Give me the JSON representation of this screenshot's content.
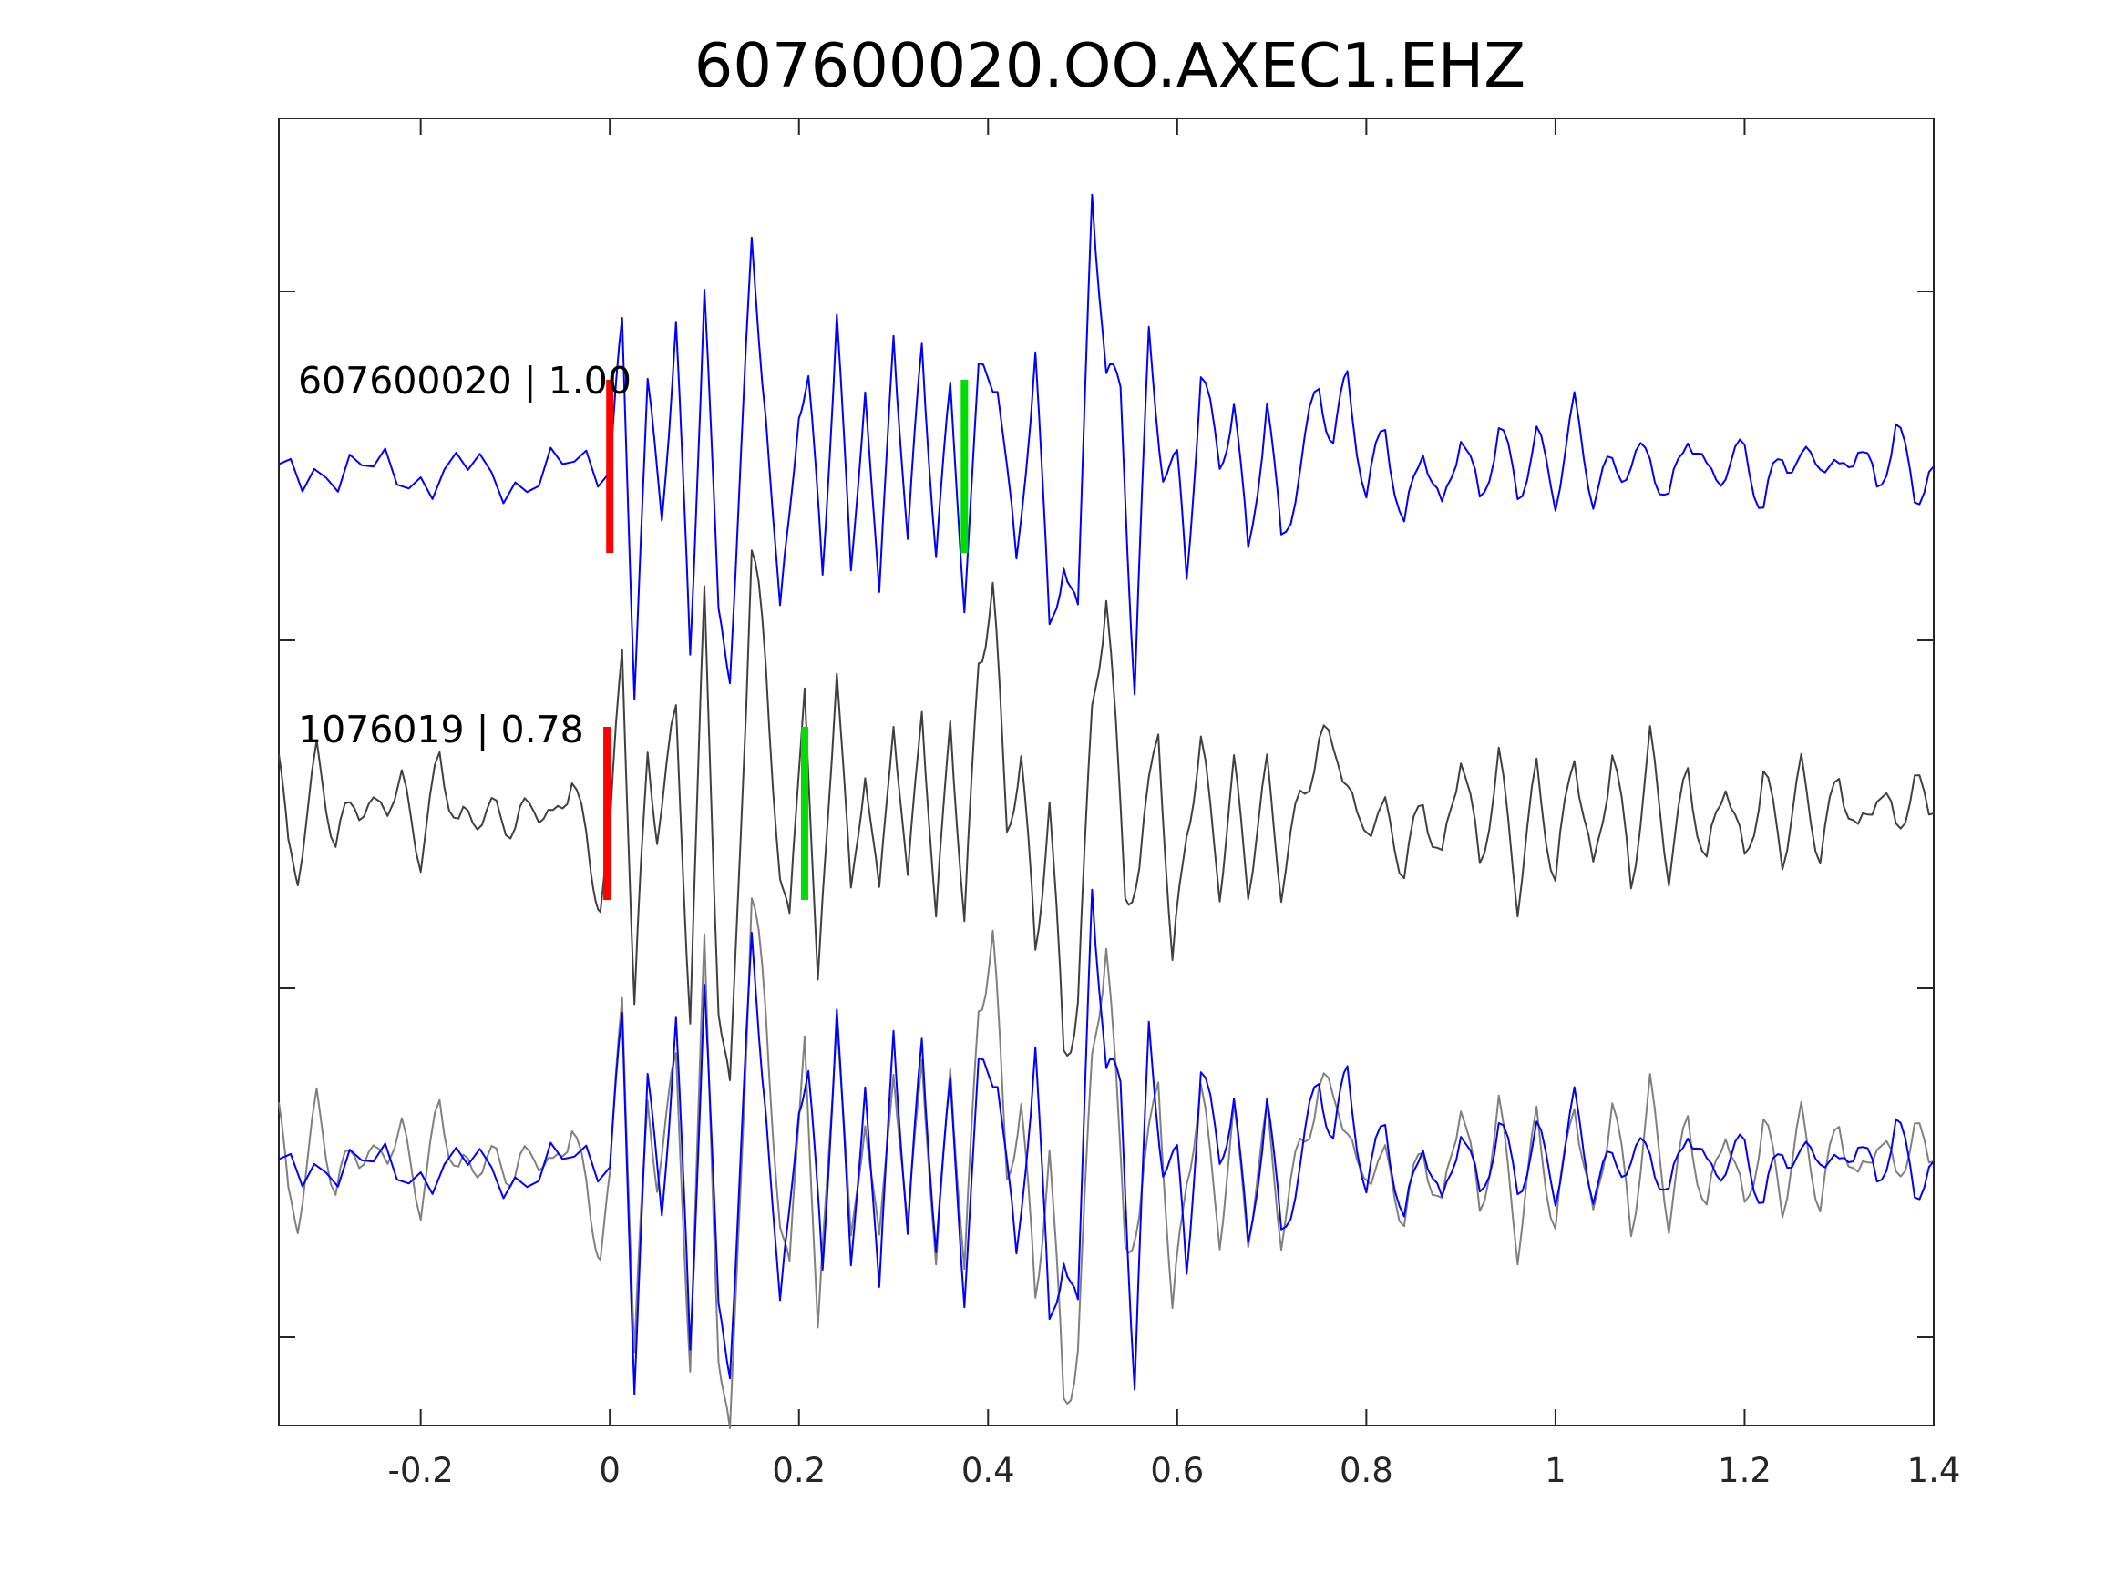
{
  "chart_data": {
    "type": "line",
    "title": "607600020.OO.AXEC1.EHZ",
    "xlabel": "",
    "ylabel": "",
    "xlim": [
      -0.35,
      1.4
    ],
    "xticks": [
      "-0.2",
      "0",
      "0.2",
      "0.4",
      "0.6",
      "0.8",
      "1",
      "1.2",
      "1.4"
    ],
    "xtick_values": [
      -0.2,
      0,
      0.2,
      0.4,
      0.6,
      0.8,
      1.0,
      1.2,
      1.4
    ],
    "grid": false,
    "colors": {
      "master": "#0000ff",
      "match": "#404040",
      "match_overlay": "#808080",
      "p_pick": "#ff0000",
      "s_pick": "#00dd00"
    },
    "traces": [
      {
        "label": "607600020 | 1.00",
        "color": "#0000ff",
        "p_pick": 0.0,
        "s_pick": 0.375,
        "points": [
          [
            -0.35,
            0.0
          ],
          [
            -0.3,
            -0.06
          ],
          [
            -0.25,
            0.04
          ],
          [
            -0.2,
            -0.1
          ],
          [
            -0.15,
            0.05
          ],
          [
            -0.1,
            -0.12
          ],
          [
            -0.05,
            0.05
          ],
          [
            0.0,
            -0.04
          ],
          [
            0.013,
            0.5
          ],
          [
            0.026,
            -0.75
          ],
          [
            0.04,
            0.25
          ],
          [
            0.055,
            -0.15
          ],
          [
            0.07,
            0.5
          ],
          [
            0.085,
            -0.7
          ],
          [
            0.1,
            0.7
          ],
          [
            0.115,
            -0.6
          ],
          [
            0.127,
            -0.7
          ],
          [
            0.15,
            0.75
          ],
          [
            0.165,
            0.25
          ],
          [
            0.18,
            -0.6
          ],
          [
            0.2,
            0.25
          ],
          [
            0.21,
            0.3
          ],
          [
            0.225,
            -0.4
          ],
          [
            0.24,
            0.6
          ],
          [
            0.255,
            -0.45
          ],
          [
            0.27,
            0.35
          ],
          [
            0.285,
            -0.55
          ],
          [
            0.3,
            0.55
          ],
          [
            0.315,
            -0.3
          ],
          [
            0.33,
            0.45
          ],
          [
            0.345,
            -0.3
          ],
          [
            0.36,
            0.25
          ],
          [
            0.375,
            -0.45
          ],
          [
            0.39,
            0.3
          ],
          [
            0.41,
            0.35
          ],
          [
            0.43,
            -0.4
          ],
          [
            0.45,
            0.45
          ],
          [
            0.465,
            -0.65
          ],
          [
            0.48,
            -0.3
          ],
          [
            0.495,
            -0.6
          ],
          [
            0.51,
            1.1
          ],
          [
            0.525,
            0.3
          ],
          [
            0.54,
            0.3
          ],
          [
            0.555,
            -0.8
          ],
          [
            0.57,
            0.45
          ],
          [
            0.585,
            0.0
          ],
          [
            0.6,
            0.0
          ],
          [
            0.61,
            -0.4
          ],
          [
            0.625,
            0.35
          ],
          [
            0.645,
            0.0
          ],
          [
            0.66,
            0.25
          ],
          [
            0.675,
            -0.35
          ],
          [
            0.695,
            0.25
          ],
          [
            0.71,
            -0.3
          ],
          [
            0.73,
            0.0
          ],
          [
            0.75,
            0.3
          ],
          [
            0.765,
            0.1
          ],
          [
            0.78,
            0.3
          ],
          [
            0.8,
            -0.1
          ],
          [
            0.82,
            0.15
          ],
          [
            0.84,
            -0.25
          ],
          [
            0.86,
            0.1
          ],
          [
            0.88,
            -0.2
          ],
          [
            0.9,
            0.15
          ],
          [
            0.92,
            -0.15
          ],
          [
            0.94,
            0.15
          ],
          [
            0.96,
            -0.1
          ],
          [
            0.98,
            0.1
          ],
          [
            1.0,
            -0.1
          ],
          [
            1.02,
            0.2
          ],
          [
            1.04,
            -0.1
          ],
          [
            1.06,
            0.0
          ],
          [
            1.08,
            0.0
          ],
          [
            1.1,
            0.05
          ],
          [
            1.12,
            -0.15
          ],
          [
            1.14,
            0.15
          ],
          [
            1.16,
            -0.05
          ],
          [
            1.18,
            0.0
          ],
          [
            1.2,
            0.05
          ],
          [
            1.22,
            -0.15
          ],
          [
            1.24,
            0.05
          ],
          [
            1.26,
            0.0
          ],
          [
            1.28,
            0.05
          ],
          [
            1.3,
            -0.05
          ],
          [
            1.32,
            0.1
          ],
          [
            1.34,
            -0.1
          ],
          [
            1.36,
            0.15
          ],
          [
            1.38,
            -0.1
          ],
          [
            1.4,
            0.0
          ]
        ]
      },
      {
        "label": "1076019 | 0.78",
        "color": "#404040",
        "p_pick": -0.003,
        "s_pick": 0.206,
        "points": [
          [
            -0.35,
            0.2
          ],
          [
            -0.34,
            -0.15
          ],
          [
            -0.33,
            -0.2
          ],
          [
            -0.31,
            0.2
          ],
          [
            -0.29,
            -0.1
          ],
          [
            -0.27,
            0.05
          ],
          [
            -0.25,
            0.0
          ],
          [
            -0.22,
            0.1
          ],
          [
            -0.2,
            -0.15
          ],
          [
            -0.18,
            0.2
          ],
          [
            -0.16,
            -0.05
          ],
          [
            -0.14,
            0.0
          ],
          [
            -0.12,
            0.0
          ],
          [
            -0.1,
            -0.05
          ],
          [
            -0.08,
            0.05
          ],
          [
            -0.06,
            -0.05
          ],
          [
            -0.04,
            0.15
          ],
          [
            -0.02,
            -0.2
          ],
          [
            -0.01,
            -0.3
          ],
          [
            0.0,
            -0.1
          ],
          [
            0.013,
            0.65
          ],
          [
            0.026,
            -0.7
          ],
          [
            0.04,
            0.2
          ],
          [
            0.05,
            -0.05
          ],
          [
            0.07,
            0.35
          ],
          [
            0.085,
            -0.7
          ],
          [
            0.1,
            0.75
          ],
          [
            0.115,
            -0.65
          ],
          [
            0.127,
            -1.1
          ],
          [
            0.15,
            1.0
          ],
          [
            0.165,
            0.5
          ],
          [
            0.18,
            -0.2
          ],
          [
            0.19,
            -0.45
          ],
          [
            0.206,
            0.55
          ],
          [
            0.22,
            -0.7
          ],
          [
            0.24,
            0.6
          ],
          [
            0.255,
            -0.35
          ],
          [
            0.27,
            0.2
          ],
          [
            0.285,
            -0.35
          ],
          [
            0.3,
            0.4
          ],
          [
            0.315,
            -0.3
          ],
          [
            0.33,
            0.45
          ],
          [
            0.345,
            -0.45
          ],
          [
            0.36,
            0.4
          ],
          [
            0.375,
            -0.45
          ],
          [
            0.39,
            0.6
          ],
          [
            0.405,
            0.8
          ],
          [
            0.42,
            -0.05
          ],
          [
            0.435,
            0.2
          ],
          [
            0.45,
            -0.5
          ],
          [
            0.465,
            0.05
          ],
          [
            0.48,
            -0.9
          ],
          [
            0.495,
            -0.65
          ],
          [
            0.51,
            0.35
          ],
          [
            0.525,
            0.85
          ],
          [
            0.545,
            -0.3
          ],
          [
            0.56,
            -0.2
          ],
          [
            0.58,
            0.35
          ],
          [
            0.595,
            -0.6
          ],
          [
            0.61,
            -0.05
          ],
          [
            0.625,
            0.25
          ],
          [
            0.645,
            -0.25
          ],
          [
            0.66,
            0.15
          ],
          [
            0.675,
            -0.25
          ],
          [
            0.695,
            0.15
          ],
          [
            0.71,
            -0.25
          ],
          [
            0.73,
            0.05
          ],
          [
            0.75,
            0.25
          ],
          [
            0.77,
            0.25
          ],
          [
            0.79,
            -0.05
          ],
          [
            0.82,
            0.0
          ],
          [
            0.84,
            -0.2
          ],
          [
            0.86,
            0.05
          ],
          [
            0.88,
            -0.2
          ],
          [
            0.9,
            0.25
          ],
          [
            0.92,
            -0.2
          ],
          [
            0.94,
            0.2
          ],
          [
            0.96,
            -0.3
          ],
          [
            0.98,
            0.15
          ],
          [
            1.0,
            -0.25
          ],
          [
            1.02,
            0.25
          ],
          [
            1.04,
            -0.25
          ],
          [
            1.06,
            0.25
          ],
          [
            1.08,
            -0.25
          ],
          [
            1.1,
            0.25
          ],
          [
            1.12,
            -0.2
          ],
          [
            1.14,
            0.15
          ],
          [
            1.16,
            -0.2
          ],
          [
            1.18,
            0.15
          ],
          [
            1.2,
            -0.2
          ],
          [
            1.22,
            0.15
          ],
          [
            1.24,
            -0.15
          ],
          [
            1.26,
            0.15
          ],
          [
            1.28,
            -0.15
          ],
          [
            1.3,
            0.15
          ],
          [
            1.32,
            -0.1
          ],
          [
            1.34,
            0.1
          ],
          [
            1.36,
            -0.05
          ],
          [
            1.38,
            0.1
          ],
          [
            1.4,
            0.0
          ]
        ]
      }
    ]
  }
}
